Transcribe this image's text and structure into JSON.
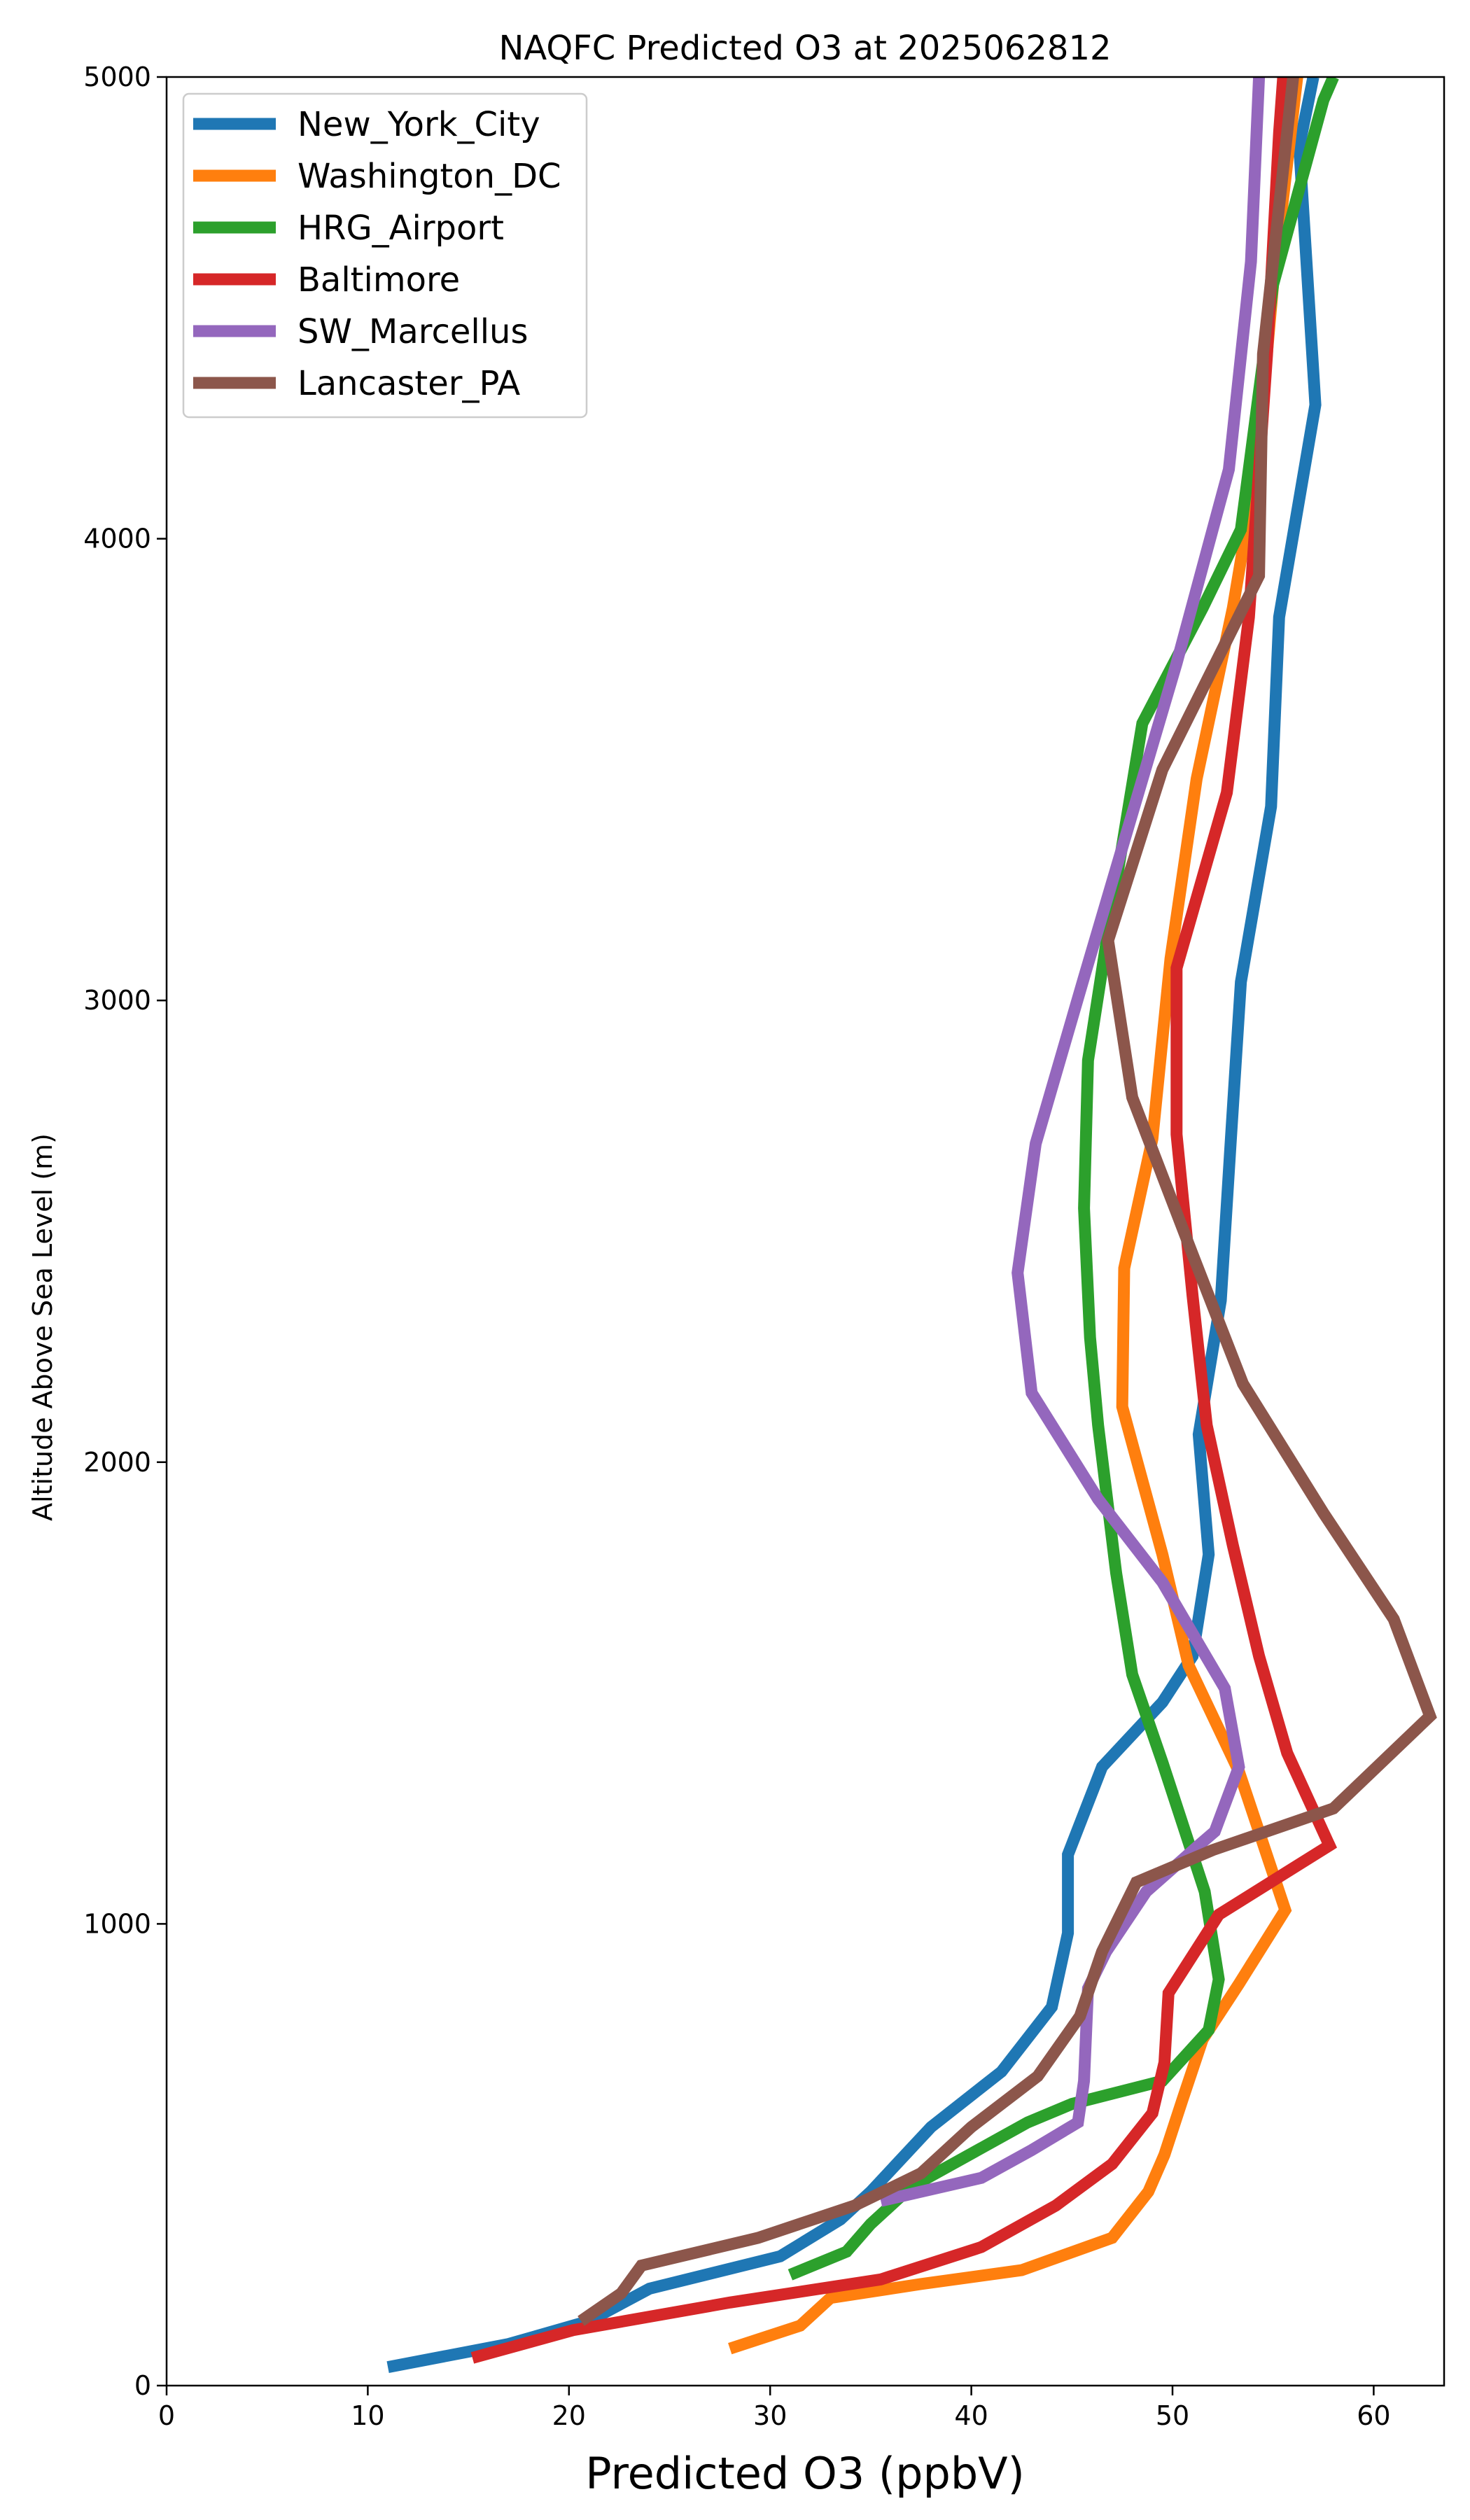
{
  "chart_data": {
    "type": "line",
    "title": "NAQFC Predicted O3 at 2025062812",
    "xlabel": "Predicted O3 (ppbV)",
    "ylabel": "Altitude Above Sea Level (m)",
    "xlim": [
      0,
      63.5
    ],
    "ylim": [
      0,
      5000
    ],
    "xticks": [
      0,
      10,
      20,
      30,
      40,
      50,
      60
    ],
    "yticks": [
      0,
      1000,
      2000,
      3000,
      4000,
      5000
    ],
    "grid": false,
    "legend_position": "upper-left",
    "series": [
      {
        "name": "New_York_City",
        "color": "#1f77b4",
        "points": [
          [
            11.0,
            40
          ],
          [
            17.0,
            90
          ],
          [
            21.0,
            140
          ],
          [
            24.0,
            210
          ],
          [
            30.5,
            280
          ],
          [
            33.5,
            360
          ],
          [
            35.0,
            420
          ],
          [
            38.0,
            560
          ],
          [
            41.5,
            680
          ],
          [
            44.0,
            820
          ],
          [
            44.8,
            980
          ],
          [
            44.8,
            1150
          ],
          [
            46.5,
            1340
          ],
          [
            49.5,
            1480
          ],
          [
            51.0,
            1580
          ],
          [
            51.8,
            1800
          ],
          [
            51.3,
            2060
          ],
          [
            52.4,
            2350
          ],
          [
            52.9,
            2700
          ],
          [
            53.4,
            3040
          ],
          [
            54.9,
            3420
          ],
          [
            55.3,
            3830
          ],
          [
            57.1,
            4290
          ],
          [
            56.3,
            4850
          ],
          [
            57.0,
            5000
          ]
        ]
      },
      {
        "name": "Washington_DC",
        "color": "#ff7f0e",
        "points": [
          [
            28.0,
            80
          ],
          [
            31.5,
            130
          ],
          [
            33.0,
            190
          ],
          [
            37.5,
            220
          ],
          [
            42.5,
            250
          ],
          [
            47.0,
            320
          ],
          [
            48.8,
            420
          ],
          [
            49.6,
            500
          ],
          [
            50.5,
            620
          ],
          [
            51.5,
            750
          ],
          [
            53.3,
            870
          ],
          [
            55.6,
            1030
          ],
          [
            53.3,
            1330
          ],
          [
            50.8,
            1560
          ],
          [
            49.5,
            1800
          ],
          [
            47.5,
            2120
          ],
          [
            47.6,
            2420
          ],
          [
            49.0,
            2700
          ],
          [
            49.9,
            3090
          ],
          [
            51.2,
            3480
          ],
          [
            53.0,
            3850
          ],
          [
            54.2,
            4160
          ],
          [
            55.0,
            4550
          ],
          [
            56.2,
            5000
          ]
        ]
      },
      {
        "name": "HRG_Airport",
        "color": "#2ca02c",
        "points": [
          [
            31.0,
            240
          ],
          [
            33.8,
            290
          ],
          [
            35.0,
            350
          ],
          [
            37.0,
            430
          ],
          [
            42.8,
            570
          ],
          [
            45.0,
            610
          ],
          [
            49.5,
            660
          ],
          [
            51.8,
            770
          ],
          [
            52.3,
            880
          ],
          [
            51.6,
            1070
          ],
          [
            49.5,
            1350
          ],
          [
            48.0,
            1540
          ],
          [
            47.2,
            1760
          ],
          [
            46.3,
            2080
          ],
          [
            45.9,
            2270
          ],
          [
            45.6,
            2550
          ],
          [
            45.8,
            2870
          ],
          [
            46.8,
            3150
          ],
          [
            48.5,
            3600
          ],
          [
            51.5,
            3850
          ],
          [
            53.4,
            4020
          ],
          [
            55.0,
            4550
          ],
          [
            57.5,
            4950
          ],
          [
            58.0,
            5000
          ]
        ]
      },
      {
        "name": "Baltimore",
        "color": "#d62728",
        "points": [
          [
            15.2,
            60
          ],
          [
            20.2,
            120
          ],
          [
            28.0,
            180
          ],
          [
            35.5,
            230
          ],
          [
            40.5,
            300
          ],
          [
            44.2,
            390
          ],
          [
            47.0,
            480
          ],
          [
            49.0,
            590
          ],
          [
            49.6,
            700
          ],
          [
            49.8,
            850
          ],
          [
            52.3,
            1020
          ],
          [
            57.8,
            1170
          ],
          [
            55.7,
            1370
          ],
          [
            54.3,
            1580
          ],
          [
            53.0,
            1820
          ],
          [
            51.7,
            2080
          ],
          [
            51.0,
            2360
          ],
          [
            50.2,
            2710
          ],
          [
            50.2,
            3070
          ],
          [
            52.7,
            3450
          ],
          [
            53.8,
            3830
          ],
          [
            54.7,
            4400
          ],
          [
            55.3,
            4880
          ],
          [
            55.5,
            5000
          ]
        ]
      },
      {
        "name": "SW_Marcellus",
        "color": "#9467bd",
        "points": [
          [
            35.5,
            400
          ],
          [
            40.5,
            450
          ],
          [
            43.0,
            510
          ],
          [
            45.3,
            570
          ],
          [
            45.6,
            660
          ],
          [
            45.8,
            860
          ],
          [
            46.7,
            940
          ],
          [
            48.7,
            1070
          ],
          [
            51.3,
            1170
          ],
          [
            52.1,
            1200
          ],
          [
            53.3,
            1340
          ],
          [
            52.6,
            1510
          ],
          [
            49.5,
            1740
          ],
          [
            46.3,
            1920
          ],
          [
            43.0,
            2150
          ],
          [
            42.3,
            2410
          ],
          [
            43.2,
            2690
          ],
          [
            45.6,
            3050
          ],
          [
            50.2,
            3730
          ],
          [
            52.8,
            4150
          ],
          [
            53.9,
            4600
          ],
          [
            54.3,
            5000
          ]
        ]
      },
      {
        "name": "Lancaster_PA",
        "color": "#8c564b",
        "points": [
          [
            20.6,
            140
          ],
          [
            22.6,
            200
          ],
          [
            23.6,
            260
          ],
          [
            29.4,
            320
          ],
          [
            34.2,
            390
          ],
          [
            37.5,
            460
          ],
          [
            40.0,
            560
          ],
          [
            43.3,
            670
          ],
          [
            45.4,
            800
          ],
          [
            46.5,
            940
          ],
          [
            48.2,
            1090
          ],
          [
            52.0,
            1160
          ],
          [
            58.0,
            1250
          ],
          [
            62.8,
            1450
          ],
          [
            61.0,
            1660
          ],
          [
            57.5,
            1890
          ],
          [
            53.5,
            2170
          ],
          [
            51.0,
            2450
          ],
          [
            48.0,
            2790
          ],
          [
            46.8,
            3130
          ],
          [
            49.5,
            3500
          ],
          [
            54.3,
            3920
          ],
          [
            54.5,
            4400
          ],
          [
            56.0,
            5000
          ]
        ]
      }
    ]
  }
}
